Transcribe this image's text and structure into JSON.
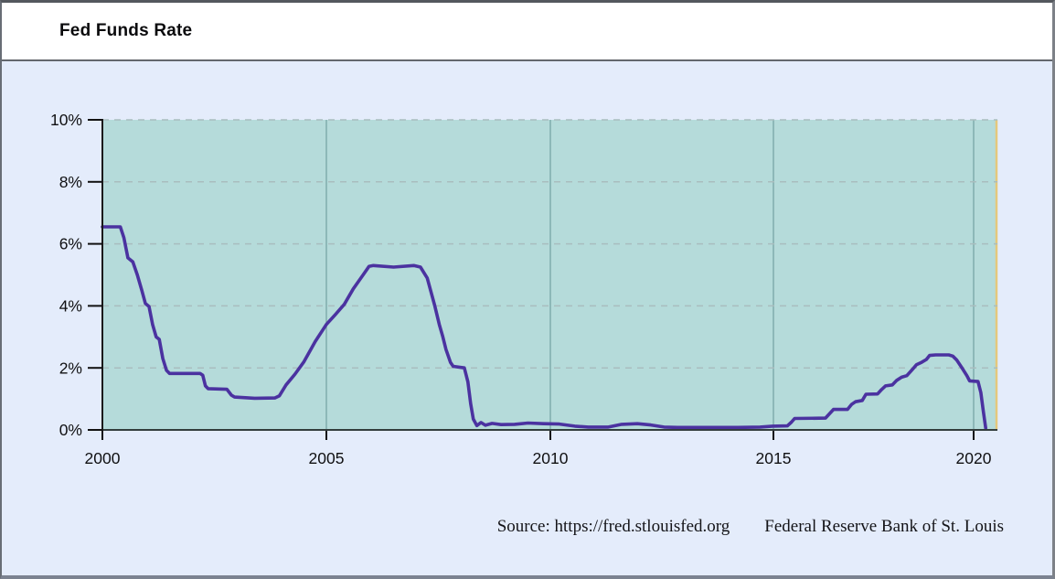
{
  "window": {
    "title": "Fed Funds Rate"
  },
  "footer": {
    "source_label": "Source: https://fred.stlouisfed.org",
    "attribution": "Federal Reserve Bank of St. Louis"
  },
  "colors": {
    "line": "#4b32a0",
    "plot_bg": "#b5dbda",
    "panel_bg": "#e4ecfb",
    "grid_dashed": "#a9bdbf",
    "grid_vertical": "#76a3a3",
    "axis_left": "#1a1a1a",
    "axis_bottom": "#333d3d",
    "tick": "#111111",
    "right_edge": "#e5c87c"
  },
  "chart_data": {
    "type": "line",
    "title": "Fed Funds Rate",
    "xlabel": "",
    "ylabel": "",
    "ylim": [
      0,
      10
    ],
    "xlim": [
      2000,
      2020.59
    ],
    "grid": "horizontal dashed, vertical solid at x ticks",
    "legend_position": "none",
    "y_ticks": [
      {
        "value": 0,
        "label": "0%"
      },
      {
        "value": 2,
        "label": "2%"
      },
      {
        "value": 4,
        "label": "4%"
      },
      {
        "value": 6,
        "label": "6%"
      },
      {
        "value": 8,
        "label": "8%"
      },
      {
        "value": 10,
        "label": "10%"
      }
    ],
    "x_ticks": [
      {
        "value": 2000,
        "label": "2000"
      },
      {
        "value": 2005,
        "label": "2005"
      },
      {
        "value": 2010,
        "label": "2010"
      },
      {
        "value": 2015,
        "label": "2015"
      },
      {
        "value": 2020,
        "label": "2020"
      }
    ],
    "series": [
      {
        "name": "Fed Funds Rate (%)",
        "points": [
          [
            2000.0,
            6.55
          ],
          [
            2000.4,
            6.55
          ],
          [
            2000.48,
            6.2
          ],
          [
            2000.57,
            5.55
          ],
          [
            2000.68,
            5.42
          ],
          [
            2000.78,
            5.0
          ],
          [
            2000.88,
            4.5
          ],
          [
            2000.96,
            4.08
          ],
          [
            2001.04,
            3.98
          ],
          [
            2001.12,
            3.4
          ],
          [
            2001.2,
            3.0
          ],
          [
            2001.27,
            2.92
          ],
          [
            2001.35,
            2.3
          ],
          [
            2001.43,
            1.92
          ],
          [
            2001.5,
            1.82
          ],
          [
            2002.18,
            1.82
          ],
          [
            2002.24,
            1.76
          ],
          [
            2002.3,
            1.42
          ],
          [
            2002.36,
            1.33
          ],
          [
            2002.78,
            1.31
          ],
          [
            2002.88,
            1.12
          ],
          [
            2002.95,
            1.06
          ],
          [
            2003.4,
            1.02
          ],
          [
            2003.85,
            1.03
          ],
          [
            2003.95,
            1.1
          ],
          [
            2004.1,
            1.45
          ],
          [
            2004.3,
            1.8
          ],
          [
            2004.5,
            2.2
          ],
          [
            2004.75,
            2.85
          ],
          [
            2005.0,
            3.4
          ],
          [
            2005.2,
            3.72
          ],
          [
            2005.4,
            4.05
          ],
          [
            2005.6,
            4.55
          ],
          [
            2005.82,
            5.0
          ],
          [
            2005.95,
            5.27
          ],
          [
            2006.05,
            5.3
          ],
          [
            2006.5,
            5.25
          ],
          [
            2006.95,
            5.3
          ],
          [
            2007.1,
            5.25
          ],
          [
            2007.25,
            4.9
          ],
          [
            2007.42,
            4.0
          ],
          [
            2007.52,
            3.4
          ],
          [
            2007.6,
            3.0
          ],
          [
            2007.67,
            2.6
          ],
          [
            2007.77,
            2.18
          ],
          [
            2007.83,
            2.05
          ],
          [
            2008.08,
            2.0
          ],
          [
            2008.16,
            1.55
          ],
          [
            2008.22,
            0.85
          ],
          [
            2008.28,
            0.35
          ],
          [
            2008.36,
            0.14
          ],
          [
            2008.45,
            0.24
          ],
          [
            2008.55,
            0.15
          ],
          [
            2008.7,
            0.21
          ],
          [
            2008.9,
            0.17
          ],
          [
            2009.2,
            0.18
          ],
          [
            2009.5,
            0.22
          ],
          [
            2009.85,
            0.2
          ],
          [
            2010.2,
            0.19
          ],
          [
            2010.55,
            0.12
          ],
          [
            2010.85,
            0.09
          ],
          [
            2011.3,
            0.09
          ],
          [
            2011.6,
            0.18
          ],
          [
            2011.95,
            0.2
          ],
          [
            2012.25,
            0.16
          ],
          [
            2012.55,
            0.09
          ],
          [
            2012.85,
            0.08
          ],
          [
            2013.5,
            0.08
          ],
          [
            2014.2,
            0.08
          ],
          [
            2014.7,
            0.09
          ],
          [
            2014.98,
            0.12
          ],
          [
            2015.35,
            0.13
          ],
          [
            2015.45,
            0.25
          ],
          [
            2015.53,
            0.37
          ],
          [
            2016.3,
            0.38
          ],
          [
            2016.42,
            0.55
          ],
          [
            2016.5,
            0.66
          ],
          [
            2016.85,
            0.66
          ],
          [
            2016.95,
            0.82
          ],
          [
            2017.05,
            0.91
          ],
          [
            2017.22,
            0.95
          ],
          [
            2017.31,
            1.15
          ],
          [
            2017.6,
            1.16
          ],
          [
            2017.7,
            1.3
          ],
          [
            2017.8,
            1.42
          ],
          [
            2017.97,
            1.45
          ],
          [
            2018.08,
            1.6
          ],
          [
            2018.2,
            1.7
          ],
          [
            2018.33,
            1.75
          ],
          [
            2018.47,
            1.95
          ],
          [
            2018.57,
            2.1
          ],
          [
            2018.7,
            2.18
          ],
          [
            2018.82,
            2.27
          ],
          [
            2018.9,
            2.4
          ],
          [
            2019.05,
            2.42
          ],
          [
            2019.38,
            2.42
          ],
          [
            2019.48,
            2.38
          ],
          [
            2019.58,
            2.25
          ],
          [
            2019.72,
            1.98
          ],
          [
            2019.83,
            1.75
          ],
          [
            2019.9,
            1.58
          ],
          [
            2020.11,
            1.56
          ],
          [
            2020.18,
            1.2
          ],
          [
            2020.24,
            0.6
          ],
          [
            2020.3,
            0.06
          ]
        ]
      }
    ]
  }
}
